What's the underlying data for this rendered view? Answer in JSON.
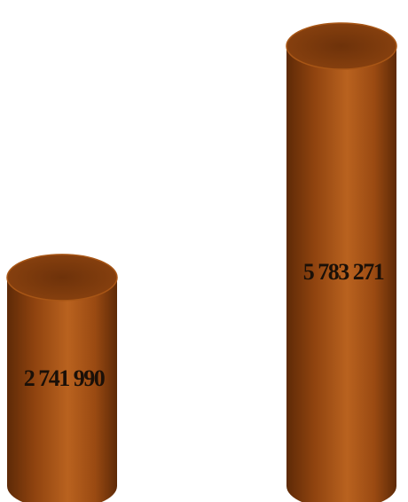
{
  "chart_data": {
    "type": "bar",
    "style": "3d-cylinder",
    "title": "",
    "xlabel": "",
    "ylabel": "",
    "categories": [
      "",
      ""
    ],
    "values": [
      2741990,
      5783271
    ],
    "value_labels": [
      "2 741 990",
      "5 783 271"
    ],
    "ylim": [
      0,
      5783271
    ],
    "grid": false,
    "legend": "none",
    "colors": {
      "bar_dark": "#5e2a07",
      "bar_mid": "#9a4a12",
      "bar_light": "#b9621f",
      "top_face": "#7a3a0c",
      "label": "#1a1008"
    }
  }
}
